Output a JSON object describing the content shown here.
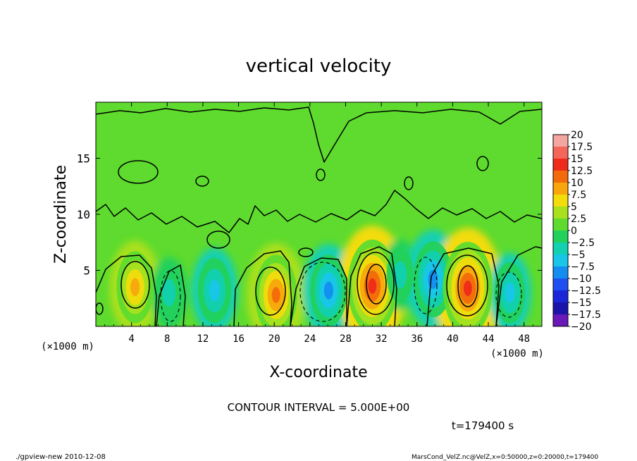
{
  "chart_data": {
    "type": "heatmap",
    "title": "vertical velocity",
    "xlabel": "X-coordinate",
    "ylabel": "Z-coordinate",
    "x_unit_note": "(×1000 m)",
    "y_unit_note": "(×1000 m)",
    "xlim": [
      0,
      50
    ],
    "ylim": [
      0,
      20
    ],
    "x_ticks": [
      4,
      8,
      12,
      16,
      20,
      24,
      28,
      32,
      36,
      40,
      44,
      48
    ],
    "y_ticks": [
      5,
      10,
      15
    ],
    "contour_interval_label": "CONTOUR INTERVAL = 5.000E+00",
    "time_label": "t=179400 s",
    "colorbar": {
      "labels": [
        "20",
        "17.5",
        "15",
        "12.5",
        "10",
        "7.5",
        "5",
        "2.5",
        "0",
        "−2.5",
        "−5",
        "−7.5",
        "−10",
        "−12.5",
        "−15",
        "−17.5",
        "−20"
      ],
      "bins": [
        {
          "low": 17.5,
          "high": 20,
          "color": "#f4a6a0"
        },
        {
          "low": 15,
          "high": 17.5,
          "color": "#f4665a"
        },
        {
          "low": 12.5,
          "high": 15,
          "color": "#ee2a1a"
        },
        {
          "low": 10,
          "high": 12.5,
          "color": "#f26a0c"
        },
        {
          "low": 7.5,
          "high": 10,
          "color": "#f7a60c"
        },
        {
          "low": 5,
          "high": 7.5,
          "color": "#f2dc0c"
        },
        {
          "low": 2.5,
          "high": 5,
          "color": "#a8e01e"
        },
        {
          "low": 0,
          "high": 2.5,
          "color": "#5edb2e"
        },
        {
          "low": -2.5,
          "high": 0,
          "color": "#22d15c"
        },
        {
          "low": -5,
          "high": -2.5,
          "color": "#12d0b0"
        },
        {
          "low": -7.5,
          "high": -5,
          "color": "#19c6e8"
        },
        {
          "low": -10,
          "high": -7.5,
          "color": "#138ef0"
        },
        {
          "low": -12.5,
          "high": -10,
          "color": "#1f4ff0"
        },
        {
          "low": -15,
          "high": -12.5,
          "color": "#1a26d8"
        },
        {
          "low": -17.5,
          "high": -15,
          "color": "#1a14a8"
        },
        {
          "low": -20,
          "high": -17.5,
          "color": "#6a18b8"
        }
      ]
    },
    "cells": [
      {
        "x": 4.4,
        "z": 3.5,
        "value": 9
      },
      {
        "x": 8.2,
        "z": 3.0,
        "value": -5
      },
      {
        "x": 13.3,
        "z": 3.2,
        "value": -7.5
      },
      {
        "x": 20.2,
        "z": 2.8,
        "value": 11
      },
      {
        "x": 26.1,
        "z": 3.2,
        "value": -9
      },
      {
        "x": 31.0,
        "z": 3.6,
        "value": 14
      },
      {
        "x": 34.1,
        "z": 4.6,
        "value": -5
      },
      {
        "x": 37.8,
        "z": 4.2,
        "value": -10
      },
      {
        "x": 41.7,
        "z": 3.4,
        "value": 14
      },
      {
        "x": 46.4,
        "z": 3.0,
        "value": -6.5
      }
    ]
  },
  "footer": {
    "left": "./gpview-new  2010-12-08",
    "right": "MarsCond_VelZ.nc@VelZ,x=0:50000,z=0:20000,t=179400"
  }
}
